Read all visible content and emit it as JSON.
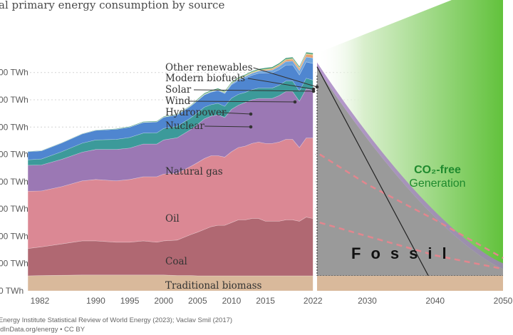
{
  "chart_data": {
    "type": "area",
    "title": "al primary energy consumption by source",
    "y_tick_labels": [
      "0 TWh",
      "00 TWh",
      "00 TWh",
      "00 TWh",
      "00 TWh",
      "00 TWh",
      "00 TWh",
      "00 TWh",
      "00 TWh"
    ],
    "x_tick_labels": [
      "1982",
      "1990",
      "1995",
      "2000",
      "2005",
      "2010",
      "2015",
      "2022",
      "2030",
      "2040",
      "2050"
    ],
    "x_ticks": [
      1982,
      1990,
      1995,
      2000,
      2005,
      2010,
      2015,
      2022,
      2030,
      2040,
      2050
    ],
    "ylim": [
      0,
      8
    ],
    "xlim": [
      1980.3,
      2050
    ],
    "grid": true,
    "years": [
      1980,
      1982,
      1985,
      1988,
      1990,
      1993,
      1995,
      1997,
      1999,
      2000,
      2002,
      2004,
      2005,
      2006,
      2007,
      2008,
      2009,
      2010,
      2011,
      2012,
      2013,
      2014,
      2015,
      2016,
      2017,
      2018,
      2019,
      2020,
      2021,
      2022
    ],
    "series": [
      {
        "name": "Traditional biomass",
        "color": "#d9b99b",
        "values": [
          0.55,
          0.56,
          0.57,
          0.58,
          0.58,
          0.58,
          0.58,
          0.58,
          0.58,
          0.58,
          0.56,
          0.56,
          0.55,
          0.55,
          0.55,
          0.55,
          0.55,
          0.55,
          0.55,
          0.55,
          0.55,
          0.55,
          0.55,
          0.55,
          0.55,
          0.55,
          0.55,
          0.55,
          0.55,
          0.55
        ]
      },
      {
        "name": "Coal",
        "color": "#b06872",
        "values": [
          1.0,
          1.05,
          1.15,
          1.25,
          1.25,
          1.2,
          1.2,
          1.25,
          1.2,
          1.25,
          1.3,
          1.5,
          1.6,
          1.7,
          1.8,
          1.85,
          1.85,
          1.95,
          2.05,
          2.05,
          2.1,
          2.1,
          2.0,
          2.0,
          2.0,
          2.05,
          2.05,
          2.0,
          2.15,
          2.1
        ]
      },
      {
        "name": "Oil",
        "color": "#db8894",
        "values": [
          2.1,
          2.05,
          2.1,
          2.2,
          2.25,
          2.25,
          2.3,
          2.35,
          2.4,
          2.45,
          2.45,
          2.5,
          2.55,
          2.6,
          2.6,
          2.55,
          2.5,
          2.6,
          2.65,
          2.7,
          2.75,
          2.8,
          2.85,
          2.85,
          2.9,
          2.95,
          2.95,
          2.7,
          2.9,
          2.95
        ]
      },
      {
        "name": "Natural gas",
        "color": "#9b78b4",
        "values": [
          0.95,
          0.95,
          1.0,
          1.05,
          1.1,
          1.15,
          1.15,
          1.2,
          1.2,
          1.25,
          1.3,
          1.35,
          1.4,
          1.45,
          1.45,
          1.5,
          1.45,
          1.55,
          1.55,
          1.6,
          1.6,
          1.6,
          1.65,
          1.65,
          1.7,
          1.75,
          1.75,
          1.7,
          1.8,
          1.75
        ]
      },
      {
        "name": "Nuclear",
        "color": "#3c9a9a",
        "values": [
          0.2,
          0.22,
          0.28,
          0.33,
          0.35,
          0.37,
          0.39,
          0.4,
          0.41,
          0.42,
          0.42,
          0.43,
          0.43,
          0.43,
          0.42,
          0.42,
          0.41,
          0.41,
          0.4,
          0.37,
          0.37,
          0.38,
          0.38,
          0.38,
          0.38,
          0.39,
          0.39,
          0.37,
          0.39,
          0.37
        ]
      },
      {
        "name": "Hydropower",
        "color": "#4f86d0",
        "values": [
          0.3,
          0.3,
          0.32,
          0.34,
          0.35,
          0.37,
          0.38,
          0.39,
          0.4,
          0.41,
          0.42,
          0.43,
          0.44,
          0.45,
          0.46,
          0.47,
          0.47,
          0.49,
          0.5,
          0.52,
          0.53,
          0.54,
          0.55,
          0.56,
          0.57,
          0.58,
          0.59,
          0.59,
          0.6,
          0.61
        ]
      },
      {
        "name": "Wind",
        "color": "#6ea4dc",
        "values": [
          0,
          0,
          0,
          0,
          0,
          0,
          0,
          0,
          0,
          0,
          0,
          0,
          0.01,
          0.01,
          0.02,
          0.02,
          0.03,
          0.04,
          0.05,
          0.06,
          0.07,
          0.08,
          0.09,
          0.1,
          0.12,
          0.13,
          0.14,
          0.16,
          0.18,
          0.2
        ]
      },
      {
        "name": "Solar",
        "color": "#e6a070",
        "values": [
          0,
          0,
          0,
          0,
          0,
          0,
          0,
          0,
          0,
          0,
          0,
          0,
          0,
          0,
          0,
          0,
          0,
          0,
          0.01,
          0.01,
          0.02,
          0.02,
          0.03,
          0.04,
          0.05,
          0.06,
          0.07,
          0.08,
          0.1,
          0.11
        ]
      },
      {
        "name": "Modern biofuels",
        "color": "#b8c66a",
        "values": [
          0,
          0,
          0,
          0,
          0,
          0,
          0,
          0.01,
          0.01,
          0.01,
          0.01,
          0.01,
          0.02,
          0.02,
          0.02,
          0.03,
          0.03,
          0.03,
          0.03,
          0.03,
          0.03,
          0.03,
          0.03,
          0.03,
          0.03,
          0.03,
          0.03,
          0.03,
          0.03,
          0.03
        ]
      },
      {
        "name": "Other renewables",
        "color": "#2f8f6f",
        "values": [
          0.01,
          0.01,
          0.01,
          0.01,
          0.01,
          0.02,
          0.02,
          0.02,
          0.02,
          0.02,
          0.02,
          0.02,
          0.03,
          0.03,
          0.03,
          0.03,
          0.03,
          0.03,
          0.03,
          0.03,
          0.03,
          0.03,
          0.04,
          0.04,
          0.04,
          0.04,
          0.04,
          0.04,
          0.04,
          0.04
        ]
      }
    ],
    "projection": {
      "total_top_2050": 11.4,
      "fossil_peak_year": 2022.5,
      "fossil_line_end_year": 2039,
      "dashed_curve_1": [
        [
          2023,
          5.0
        ],
        [
          2030,
          3.9
        ],
        [
          2040,
          2.6
        ],
        [
          2050,
          1.2
        ]
      ],
      "dashed_curve_2": [
        [
          2023,
          2.5
        ],
        [
          2030,
          2.0
        ],
        [
          2040,
          1.3
        ],
        [
          2050,
          0.8
        ]
      ]
    },
    "annotations": {
      "co2_free": "CO₂-free",
      "generation": "Generation",
      "fossil": "Fossil"
    },
    "colors": {
      "green_light": "#e8f5e2",
      "green_dark": "#5fbf3a",
      "fossil_grey": "#9a9a9a",
      "dashed_pink": "#e2868e"
    }
  },
  "footer": {
    "line1": "Energy Institute Statistical Review of World Energy (2023); Vaclav Smil (2017)",
    "line2": "ldInData.org/energy • CC BY"
  }
}
